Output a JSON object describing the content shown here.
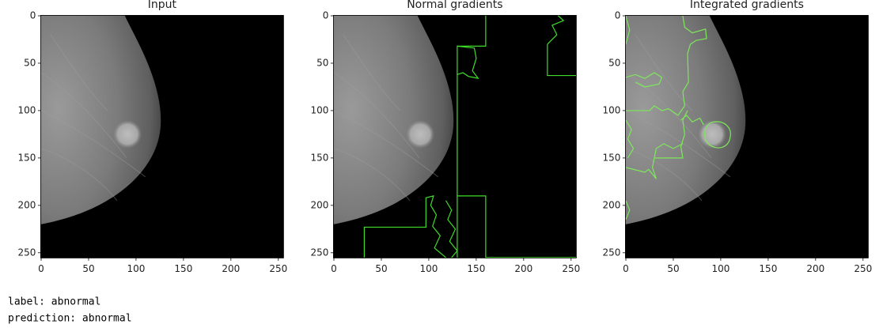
{
  "chart_data": [
    {
      "type": "image",
      "title": "Input",
      "xlim": [
        -0.5,
        255.5
      ],
      "ylim": [
        255.5,
        -0.5
      ],
      "xticks": [
        0,
        50,
        100,
        150,
        200,
        250
      ],
      "yticks": [
        0,
        50,
        100,
        150,
        200,
        250
      ]
    },
    {
      "type": "image",
      "title": "Normal gradients",
      "xlim": [
        -0.5,
        255.5
      ],
      "ylim": [
        255.5,
        -0.5
      ],
      "xticks": [
        0,
        50,
        100,
        150,
        200,
        250
      ],
      "yticks": [
        0,
        50,
        100,
        150,
        200,
        250
      ]
    },
    {
      "type": "image",
      "title": "Integrated gradients",
      "xlim": [
        -0.5,
        255.5
      ],
      "ylim": [
        255.5,
        -0.5
      ],
      "xticks": [
        0,
        50,
        100,
        150,
        200,
        250
      ],
      "yticks": [
        0,
        50,
        100,
        150,
        200,
        250
      ]
    }
  ],
  "output": {
    "label_line": "label: abnormal",
    "prediction_line": "prediction: abnormal"
  }
}
